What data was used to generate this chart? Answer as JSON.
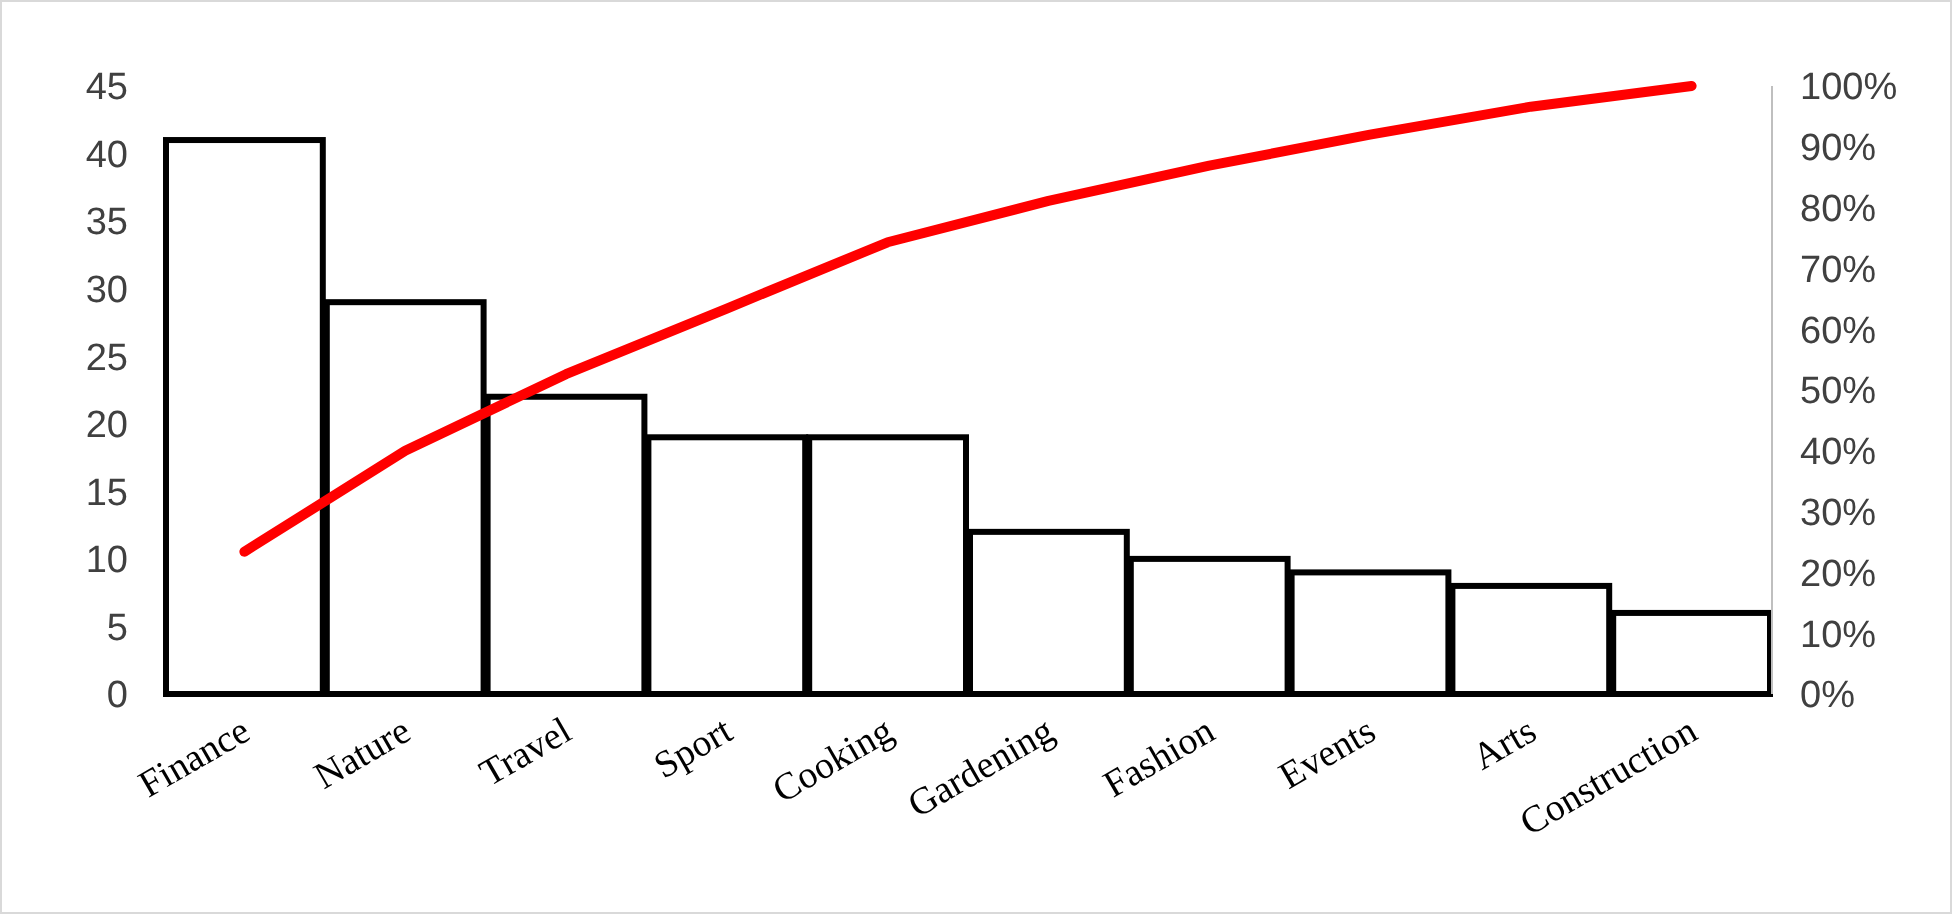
{
  "chart_data": {
    "type": "bar",
    "categories": [
      "Finance",
      "Nature",
      "Travel",
      "Sport",
      "Cooking",
      "Gardening",
      "Fashion",
      "Events",
      "Arts",
      "Construction"
    ],
    "series": [
      {
        "color": "#ffffff",
        "values": [
          41,
          29,
          22,
          19,
          19,
          12,
          10,
          9,
          8,
          6
        ]
      },
      {
        "type": "line",
        "axis": "y2",
        "color": "#ff0000",
        "values": [
          23.4,
          40,
          52.6,
          63.4,
          74.3,
          81.1,
          86.9,
          92,
          96.6,
          100
        ]
      }
    ],
    "ylim": [
      0,
      45
    ],
    "yticks": [
      0,
      5,
      10,
      15,
      20,
      25,
      30,
      35,
      40,
      45
    ],
    "y2lim": [
      0,
      100
    ],
    "y2ticks": [
      {
        "value": 0,
        "label": "0%"
      },
      {
        "value": 10,
        "label": "10%"
      },
      {
        "value": 20,
        "label": "20%"
      },
      {
        "value": 30,
        "label": "30%"
      },
      {
        "value": 40,
        "label": "40%"
      },
      {
        "value": 50,
        "label": "50%"
      },
      {
        "value": 60,
        "label": "60%"
      },
      {
        "value": 70,
        "label": "70%"
      },
      {
        "value": 80,
        "label": "80%"
      },
      {
        "value": 90,
        "label": "90%"
      },
      {
        "value": 100,
        "label": "100%"
      }
    ],
    "grid": false,
    "marker": "none",
    "line_style": "solid"
  }
}
